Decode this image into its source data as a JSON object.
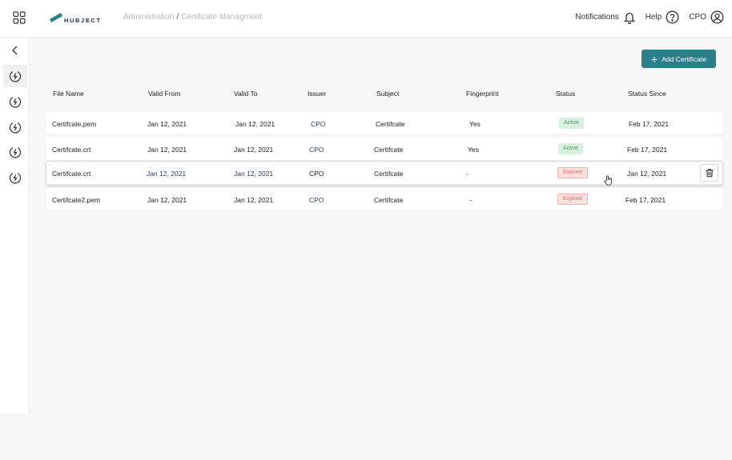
{
  "header": {
    "logo_text": "HUBJECT",
    "breadcrumb": [
      "Administration",
      "Certificate Managment"
    ],
    "breadcrumb_sep": "/",
    "notifications_label": "Notifications",
    "help_label": "Help",
    "user_label": "CPO"
  },
  "actions": {
    "add_label": "Add Certificate"
  },
  "table": {
    "columns": [
      "File Name",
      "Valid From",
      "Valid To",
      "Issuer",
      "Subject",
      "Fingerprint",
      "Status",
      "Status Since"
    ],
    "rows": [
      {
        "file": "Certifcate.pem",
        "from": "Jan 12, 2021",
        "to": "Jan 12, 2021",
        "issuer": "CPO",
        "subject": "Certifcate",
        "fingerprint": "Yes",
        "status": "Active",
        "since": "Feb 17, 2021"
      },
      {
        "file": "Certifcate.crt",
        "from": "Jan 12, 2021",
        "to": "Jan 12, 2021",
        "issuer": "CPO",
        "subject": "Certifcate",
        "fingerprint": "Yes",
        "status": "Active",
        "since": "Feb 17, 2021"
      },
      {
        "file": "Certifcate.crt",
        "from": "Jan 12, 2021",
        "to": "Jan 12, 2021",
        "issuer": "CPO",
        "subject": "Certifcate",
        "fingerprint": "-",
        "status": "Expired",
        "since": "Jan 12, 2021"
      },
      {
        "file": "Certifcate2.pem",
        "from": "Jan 12, 2021",
        "to": "Jan 12, 2021",
        "issuer": "CPO",
        "subject": "Certifcate",
        "fingerprint": "-",
        "status": "Expired",
        "since": "Feb 17, 2021"
      }
    ]
  },
  "colors": {
    "accent": "#2b7f8a",
    "active_bg": "#d7f1de",
    "expired_bg": "#fde1df"
  },
  "icons": [
    "apps-grid-icon",
    "bell-icon",
    "help-circle-icon",
    "user-circle-icon",
    "chevron-left-icon",
    "charging-icon",
    "plus-icon",
    "trash-icon",
    "hand-cursor-icon"
  ]
}
